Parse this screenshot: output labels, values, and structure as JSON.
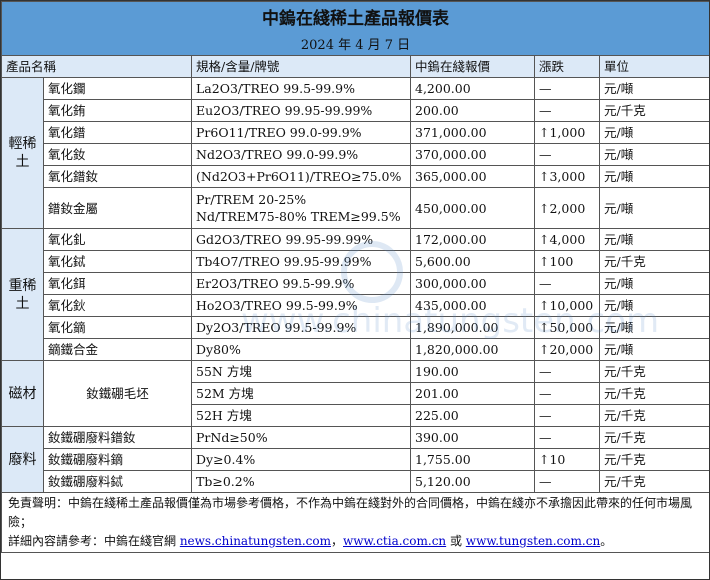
{
  "title": "中鎢在綫稀土產品報價表",
  "date": "2024 年 4 月 7 日",
  "headers": [
    "產品名稱",
    "規格/含量/牌號",
    "中鎢在綫報價",
    "漲跌",
    "單位"
  ],
  "groups": [
    {
      "label": "輕稀土",
      "rows": [
        {
          "name": "氧化鑭",
          "spec": "La2O3/TREO 99.5-99.9%",
          "price": "4,200.00",
          "change": "—",
          "up": false,
          "unit": "元/噸"
        },
        {
          "name": "氧化銪",
          "spec": "Eu2O3/TREO 99.95-99.99%",
          "price": "200.00",
          "change": "—",
          "up": false,
          "unit": "元/千克"
        },
        {
          "name": "氧化鐠",
          "spec": "Pr6O11/TREO 99.0-99.9%",
          "price": "371,000.00",
          "change": "1,000",
          "up": true,
          "unit": "元/噸"
        },
        {
          "name": "氧化釹",
          "spec": "Nd2O3/TREO 99.0-99.9%",
          "price": "370,000.00",
          "change": "—",
          "up": false,
          "unit": "元/噸"
        },
        {
          "name": "氧化鐠釹",
          "spec": "(Nd2O3+Pr6O11)/TREO≥75.0%",
          "price": "365,000.00",
          "change": "3,000",
          "up": true,
          "unit": "元/噸"
        },
        {
          "name": "鐠釹金屬",
          "spec": "Pr/TREM 20-25%",
          "spec2": "Nd/TREM75-80% TREM≥99.5%",
          "price": "450,000.00",
          "change": "2,000",
          "up": true,
          "unit": "元/噸"
        }
      ]
    },
    {
      "label": "重稀土",
      "rows": [
        {
          "name": "氧化釓",
          "spec": "Gd2O3/TREO 99.95-99.99%",
          "price": "172,000.00",
          "change": "4,000",
          "up": true,
          "unit": "元/噸"
        },
        {
          "name": "氧化鋱",
          "spec": "Tb4O7/TREO 99.95-99.99%",
          "price": "5,600.00",
          "change": "100",
          "up": true,
          "unit": "元/千克"
        },
        {
          "name": "氧化鉺",
          "spec": "Er2O3/TREO 99.5-99.9%",
          "price": "300,000.00",
          "change": "—",
          "up": false,
          "unit": "元/噸"
        },
        {
          "name": "氧化鈥",
          "spec": "Ho2O3/TREO 99.5-99.9%",
          "price": "435,000.00",
          "change": "10,000",
          "up": true,
          "unit": "元/噸"
        },
        {
          "name": "氧化鏑",
          "spec": "Dy2O3/TREO 99.5-99.9%",
          "price": "1,890,000.00",
          "change": "50,000",
          "up": true,
          "unit": "元/噸"
        },
        {
          "name": "鏑鐵合金",
          "spec": "Dy80%",
          "price": "1,820,000.00",
          "change": "20,000",
          "up": true,
          "unit": "元/噸"
        }
      ]
    },
    {
      "label": "磁材",
      "merged_name": "釹鐵硼毛坯",
      "rows": [
        {
          "spec": "55N 方塊",
          "price": "190.00",
          "change": "—",
          "up": false,
          "unit": "元/千克"
        },
        {
          "spec": "52M 方塊",
          "price": "201.00",
          "change": "—",
          "up": false,
          "unit": "元/千克"
        },
        {
          "spec": "52H 方塊",
          "price": "225.00",
          "change": "—",
          "up": false,
          "unit": "元/千克"
        }
      ]
    },
    {
      "label": "廢料",
      "rows": [
        {
          "name": "釹鐵硼廢料鐠釹",
          "spec": "PrNd≥50%",
          "price": "390.00",
          "change": "—",
          "up": false,
          "unit": "元/千克"
        },
        {
          "name": "釹鐵硼廢料鏑",
          "spec": "Dy≥0.4%",
          "price": "1,755.00",
          "change": "10",
          "up": true,
          "unit": "元/千克"
        },
        {
          "name": "釹鐵硼廢料鋱",
          "spec": "Tb≥0.2%",
          "price": "5,120.00",
          "change": "—",
          "up": false,
          "unit": "元/千克"
        }
      ]
    }
  ],
  "footer": {
    "disclaimer": "免責聲明：中鎢在綫稀土產品報價僅為市場參考價格，不作為中鎢在綫對外的合同價格，中鎢在綫亦不承擔因此帶來的任何市場風險；",
    "ref_prefix": "詳細內容請參考：中鎢在綫官網 ",
    "link1": "news.chinatungsten.com",
    "sep1": "，",
    "link2": "www.ctia.com.cn",
    "sep2": " 或 ",
    "link3": "www.tungsten.com.cn",
    "end": "。"
  },
  "watermark": "www.chinatungsten.com"
}
